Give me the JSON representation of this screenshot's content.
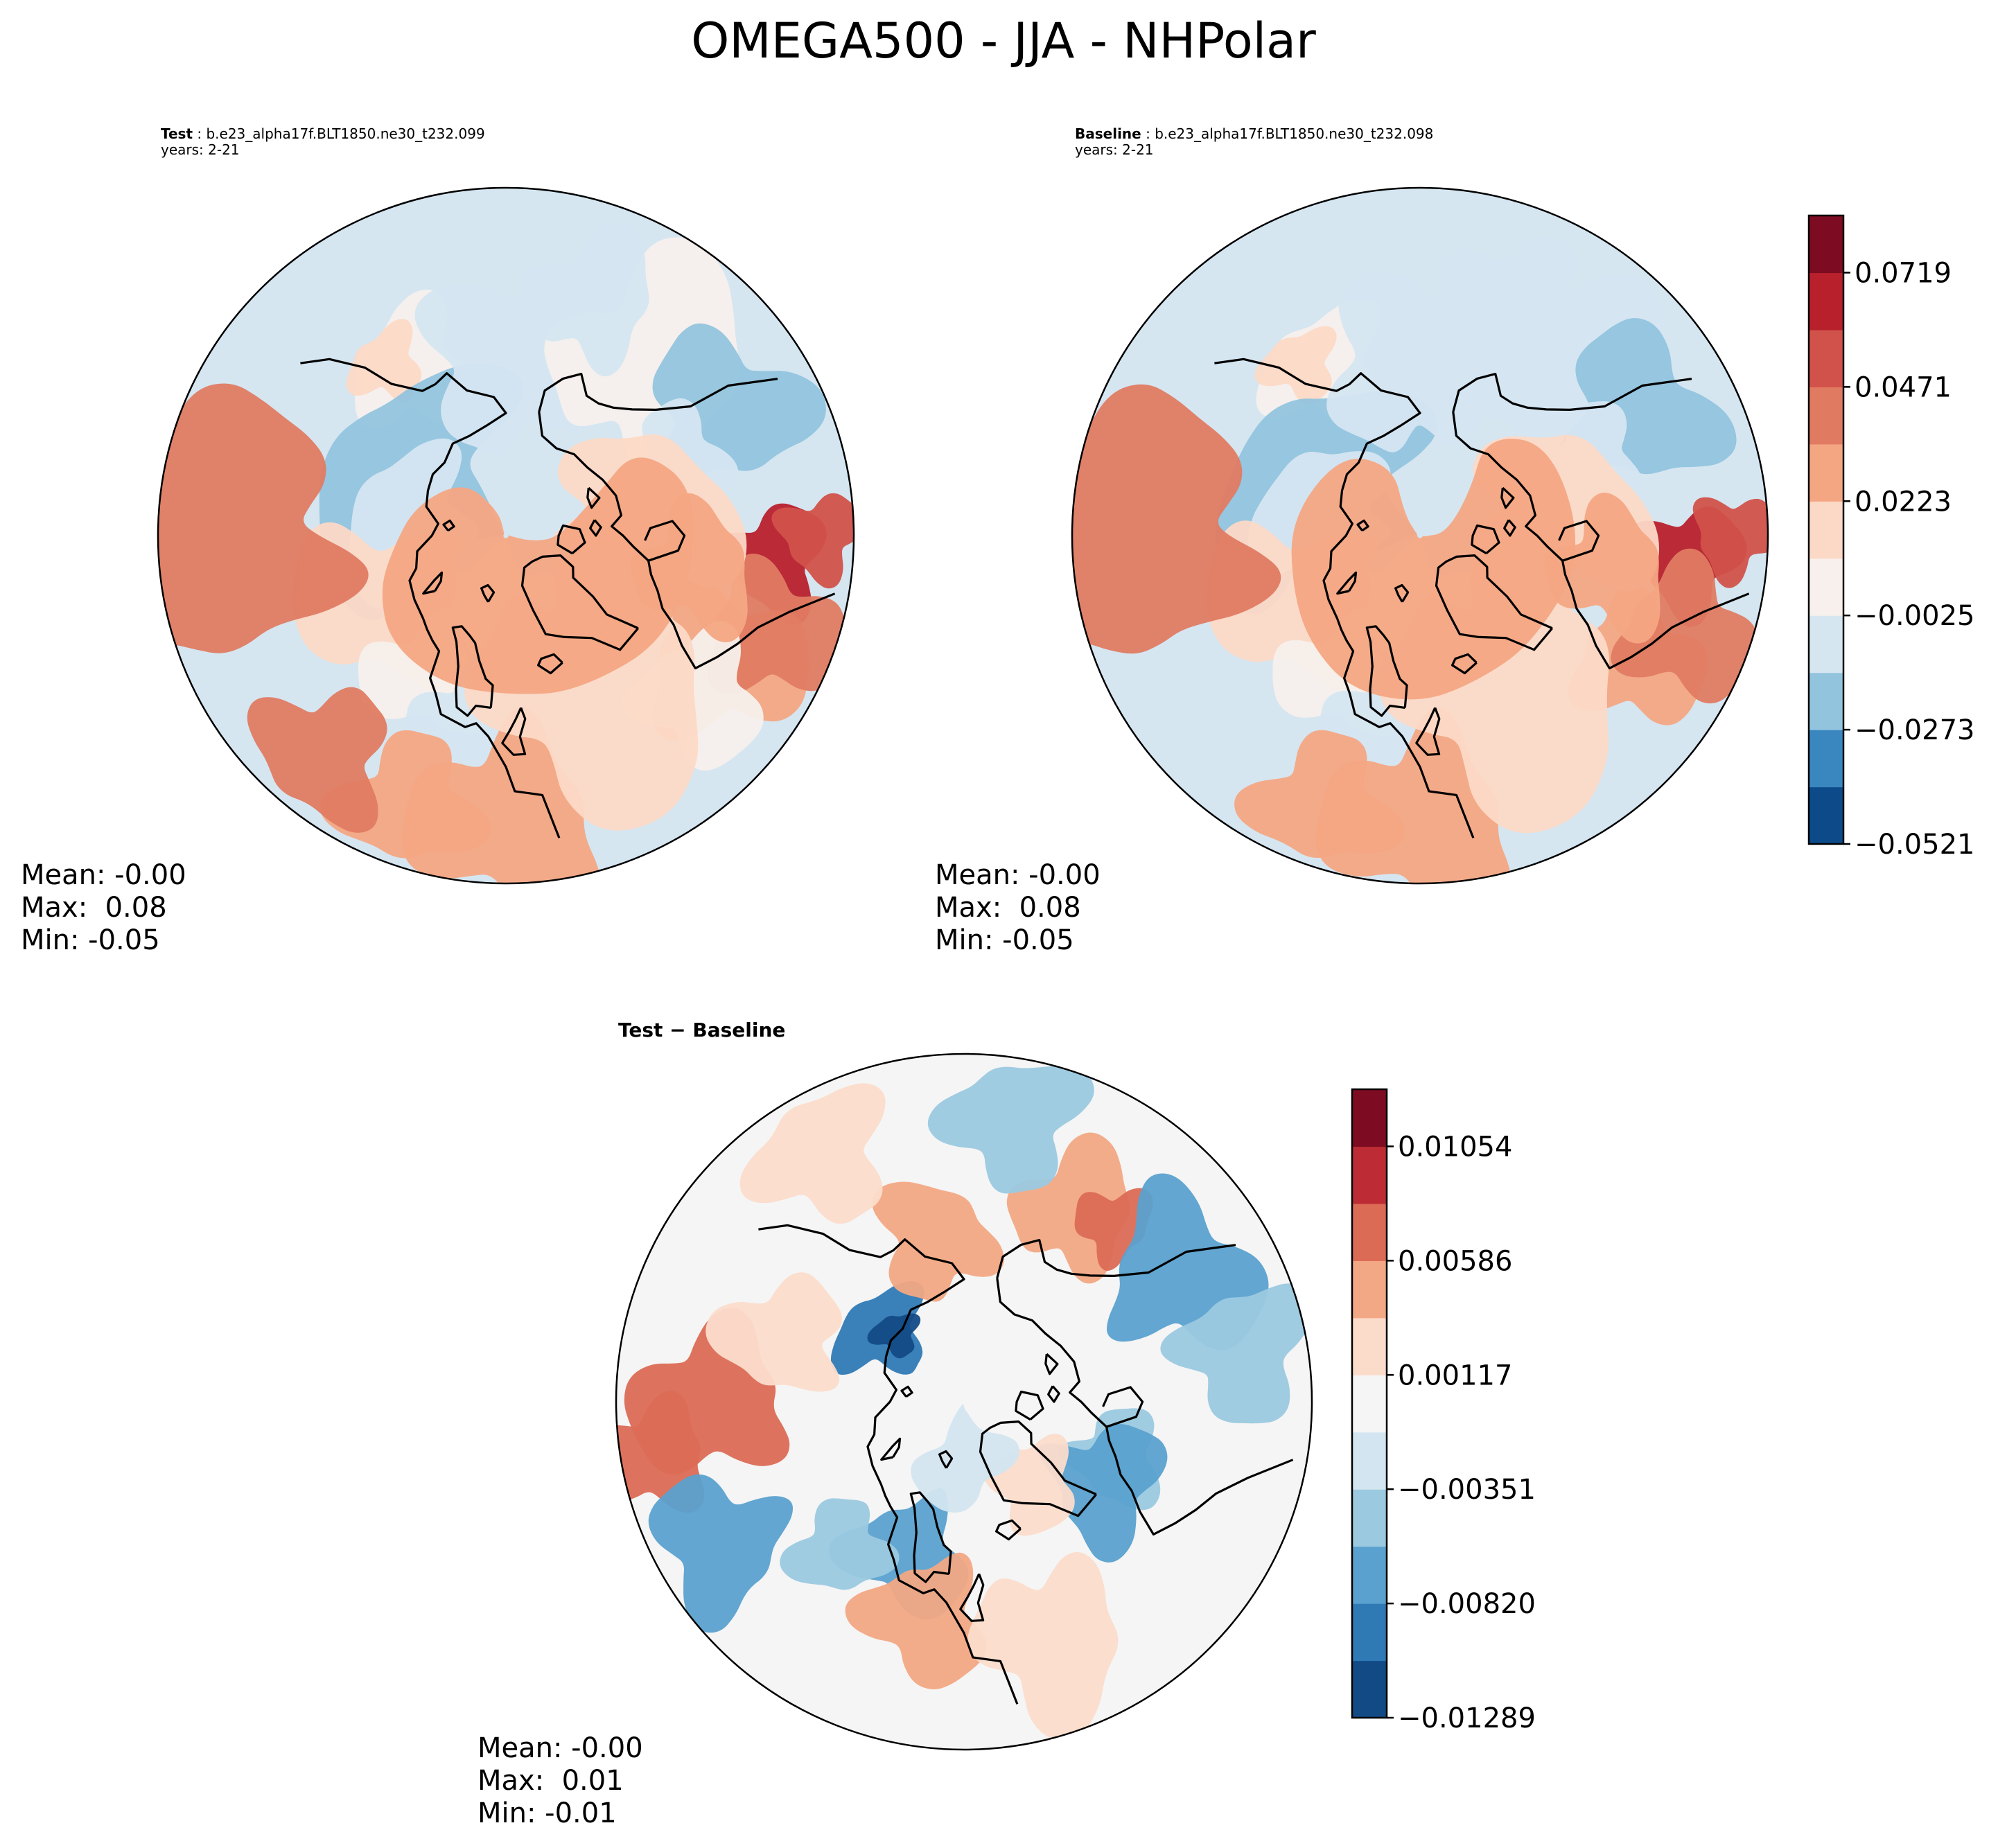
{
  "figure_title": "OMEGA500 - JJA - NHPolar",
  "panels": [
    {
      "id": "test",
      "label": "Test",
      "case": "b.e23_alpha17f.BLT1850.ne30_t232.099",
      "years": "years: 2-21",
      "stats": {
        "mean": "Mean: -0.00",
        "max": "Max:  0.08",
        "min": "Min: -0.05"
      },
      "base_field": "slightly_negative",
      "field_blobs": [
        {
          "lon": 150,
          "lat": 55,
          "r": 10,
          "level": 4
        },
        {
          "lon": 145,
          "lat": 52,
          "r": 6,
          "level": 5
        },
        {
          "lon": 120,
          "lat": 70,
          "r": 18,
          "level": 2
        },
        {
          "lon": 100,
          "lat": 72,
          "r": 12,
          "level": 3
        },
        {
          "lon": 180,
          "lat": 60,
          "r": 14,
          "level": 3
        },
        {
          "lon": -140,
          "lat": 50,
          "r": 16,
          "level": 4
        },
        {
          "lon": -160,
          "lat": 45,
          "r": 10,
          "level": 3
        },
        {
          "lon": -120,
          "lat": 45,
          "r": 12,
          "level": 2
        },
        {
          "lon": -115,
          "lat": 55,
          "r": 8,
          "level": 3
        },
        {
          "lon": -85,
          "lat": 42,
          "r": 8,
          "level": 9
        },
        {
          "lon": -90,
          "lat": 35,
          "r": 6,
          "level": 8
        },
        {
          "lon": -60,
          "lat": 45,
          "r": 12,
          "level": 6
        },
        {
          "lon": -70,
          "lat": 40,
          "r": 10,
          "level": 7
        },
        {
          "lon": -50,
          "lat": 45,
          "r": 10,
          "level": 4
        },
        {
          "lon": 60,
          "lat": 65,
          "r": 15,
          "level": 5
        },
        {
          "lon": 30,
          "lat": 60,
          "r": 10,
          "level": 4
        },
        {
          "lon": 10,
          "lat": 55,
          "r": 10,
          "level": 3
        },
        {
          "lon": 0,
          "lat": 40,
          "r": 14,
          "level": 6
        },
        {
          "lon": 90,
          "lat": 40,
          "r": 20,
          "level": 7
        },
        {
          "lon": -30,
          "lat": 60,
          "r": 20,
          "level": 5
        },
        {
          "lon": -100,
          "lat": 65,
          "r": 15,
          "level": 5
        },
        {
          "lon": -80,
          "lat": 55,
          "r": 10,
          "level": 6
        },
        {
          "lon": 20,
          "lat": 40,
          "r": 10,
          "level": 6
        },
        {
          "lon": 40,
          "lat": 40,
          "r": 10,
          "level": 7
        },
        {
          "lon": 0,
          "lat": 85,
          "r": 30,
          "level": 6
        }
      ],
      "colorbar": null
    },
    {
      "id": "baseline",
      "label": "Baseline",
      "case": "b.e23_alpha17f.BLT1850.ne30_t232.098",
      "years": "years: 2-21",
      "stats": {
        "mean": "Mean: -0.00",
        "max": "Max:  0.08",
        "min": "Min: -0.05"
      },
      "base_field": "slightly_negative",
      "field_blobs": [
        {
          "lon": 150,
          "lat": 55,
          "r": 10,
          "level": 4
        },
        {
          "lon": 145,
          "lat": 52,
          "r": 6,
          "level": 5
        },
        {
          "lon": 118,
          "lat": 70,
          "r": 18,
          "level": 2
        },
        {
          "lon": 105,
          "lat": 72,
          "r": 12,
          "level": 3
        },
        {
          "lon": 175,
          "lat": 60,
          "r": 14,
          "level": 3
        },
        {
          "lon": -140,
          "lat": 52,
          "r": 16,
          "level": 3
        },
        {
          "lon": -160,
          "lat": 45,
          "r": 10,
          "level": 3
        },
        {
          "lon": -120,
          "lat": 45,
          "r": 12,
          "level": 2
        },
        {
          "lon": -115,
          "lat": 55,
          "r": 8,
          "level": 3
        },
        {
          "lon": -85,
          "lat": 42,
          "r": 8,
          "level": 9
        },
        {
          "lon": -90,
          "lat": 35,
          "r": 6,
          "level": 8
        },
        {
          "lon": -60,
          "lat": 45,
          "r": 10,
          "level": 6
        },
        {
          "lon": -70,
          "lat": 40,
          "r": 10,
          "level": 7
        },
        {
          "lon": 60,
          "lat": 65,
          "r": 15,
          "level": 5
        },
        {
          "lon": 30,
          "lat": 60,
          "r": 10,
          "level": 4
        },
        {
          "lon": 10,
          "lat": 55,
          "r": 10,
          "level": 3
        },
        {
          "lon": 0,
          "lat": 40,
          "r": 14,
          "level": 6
        },
        {
          "lon": 90,
          "lat": 40,
          "r": 20,
          "level": 7
        },
        {
          "lon": -30,
          "lat": 60,
          "r": 20,
          "level": 5
        },
        {
          "lon": -100,
          "lat": 65,
          "r": 15,
          "level": 5
        },
        {
          "lon": -80,
          "lat": 55,
          "r": 10,
          "level": 6
        },
        {
          "lon": 20,
          "lat": 40,
          "r": 10,
          "level": 6
        },
        {
          "lon": 0,
          "lat": 85,
          "r": 30,
          "level": 6
        }
      ],
      "colorbar": {
        "colors": [
          "#0d4a8a",
          "#3a87c0",
          "#92c4de",
          "#d5e6f1",
          "#f7f0ec",
          "#fcd9c6",
          "#f4a683",
          "#e07b62",
          "#d1524a",
          "#b8202c",
          "#7d0c22"
        ],
        "tick_labels": [
          "−0.0521",
          "−0.0273",
          "−0.0025",
          "0.0223",
          "0.0471",
          "0.0719"
        ]
      }
    },
    {
      "id": "difference",
      "label": "Test − Baseline",
      "stats": {
        "mean": "Mean: -0.00",
        "max": "Max:  0.01",
        "min": "Min: -0.01"
      },
      "base_field": "near_zero",
      "field_blobs": [
        {
          "lon": 130,
          "lat": 70,
          "r": 8,
          "level": 1
        },
        {
          "lon": 135,
          "lat": 72,
          "r": 4,
          "level": 0
        },
        {
          "lon": 170,
          "lat": 60,
          "r": 10,
          "level": 7
        },
        {
          "lon": -150,
          "lat": 50,
          "r": 10,
          "level": 7
        },
        {
          "lon": -140,
          "lat": 48,
          "r": 6,
          "level": 8
        },
        {
          "lon": -70,
          "lat": 60,
          "r": 8,
          "level": 3
        },
        {
          "lon": -60,
          "lat": 60,
          "r": 10,
          "level": 2
        },
        {
          "lon": 20,
          "lat": 60,
          "r": 10,
          "level": 2
        },
        {
          "lon": 10,
          "lat": 50,
          "r": 10,
          "level": 7
        },
        {
          "lon": 90,
          "lat": 45,
          "r": 12,
          "level": 8
        },
        {
          "lon": 80,
          "lat": 35,
          "r": 8,
          "level": 8
        },
        {
          "lon": -40,
          "lat": 70,
          "r": 8,
          "level": 6
        },
        {
          "lon": 0,
          "lat": 80,
          "r": 10,
          "level": 4
        },
        {
          "lon": -120,
          "lat": 45,
          "r": 12,
          "level": 2
        },
        {
          "lon": 60,
          "lat": 40,
          "r": 10,
          "level": 2
        },
        {
          "lon": -100,
          "lat": 40,
          "r": 10,
          "level": 3
        },
        {
          "lon": 110,
          "lat": 55,
          "r": 10,
          "level": 6
        },
        {
          "lon": -20,
          "lat": 45,
          "r": 12,
          "level": 6
        },
        {
          "lon": 40,
          "lat": 55,
          "r": 8,
          "level": 3
        },
        {
          "lon": -170,
          "lat": 40,
          "r": 10,
          "level": 3
        },
        {
          "lon": 150,
          "lat": 40,
          "r": 10,
          "level": 6
        }
      ],
      "colorbar": {
        "colors": [
          "#124a85",
          "#2f79b5",
          "#5aa1cf",
          "#9bc9e0",
          "#d3e5f0",
          "#f5f5f5",
          "#fbdccb",
          "#f2a884",
          "#db6b55",
          "#bd2c34",
          "#7d0c22"
        ],
        "tick_labels": [
          "−0.01289",
          "−0.00820",
          "−0.00351",
          "0.00117",
          "0.00586",
          "0.01054"
        ]
      }
    }
  ]
}
